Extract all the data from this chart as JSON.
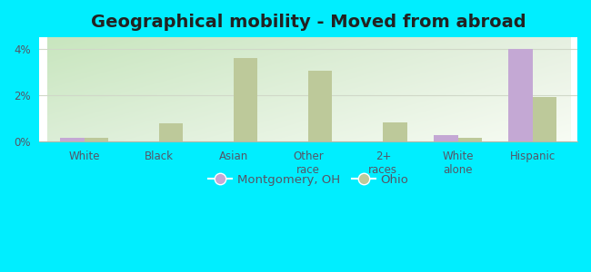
{
  "title": "Geographical mobility - Moved from abroad",
  "categories": [
    "White",
    "Black",
    "Asian",
    "Other\nrace",
    "2+\nraces",
    "White\nalone",
    "Hispanic"
  ],
  "montgomery_values": [
    0.18,
    0.0,
    0.0,
    0.0,
    0.0,
    0.28,
    3.98
  ],
  "ohio_values": [
    0.18,
    0.78,
    3.62,
    3.05,
    0.82,
    0.18,
    1.92
  ],
  "montgomery_color": "#c4a8d4",
  "ohio_color": "#bdc99a",
  "bg_outer": "#00eeff",
  "bg_plot_tl": "#c8e6c0",
  "bg_plot_tr": "#e8f0e0",
  "bg_plot_bl": "#e0eedc",
  "bg_plot_br": "#f5faf0",
  "ylim": [
    0,
    4.5
  ],
  "yticks": [
    0,
    2,
    4
  ],
  "ytick_labels": [
    "0%",
    "2%",
    "4%"
  ],
  "bar_width": 0.32,
  "legend_montgomery": "Montgomery, OH",
  "legend_ohio": "Ohio",
  "title_fontsize": 14,
  "tick_fontsize": 8.5,
  "legend_fontsize": 9.5,
  "grid_color": "#d0d8c8",
  "spine_color": "#b0b8a8"
}
